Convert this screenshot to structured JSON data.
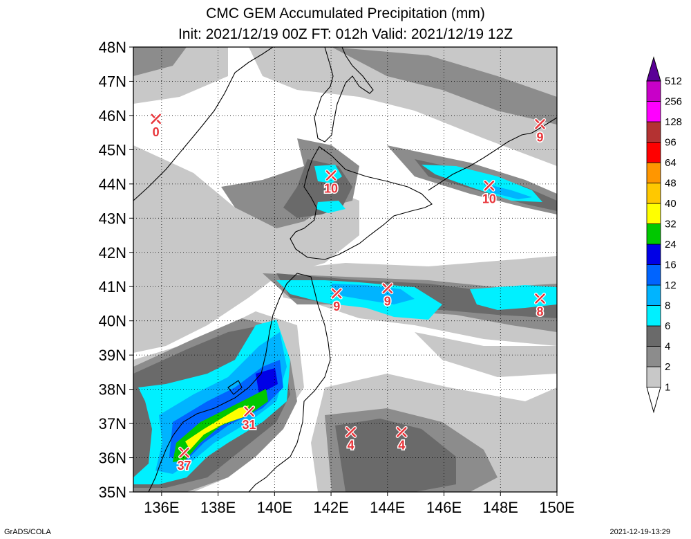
{
  "title": "CMC GEM Accumulated Precipitation (mm)",
  "subtitle": "Init: 2021/12/19 00Z  FT: 012h  Valid: 2021/12/19 12Z",
  "footer_left": "GrADS/COLA",
  "footer_right": "2021-12-19-13:29",
  "chart_data": {
    "type": "heatmap",
    "title": "CMC GEM Accumulated Precipitation (mm)",
    "subtitle": "Init: 2021/12/19 00Z  FT: 012h  Valid: 2021/12/19 12Z",
    "xlim": [
      135,
      150
    ],
    "ylim": [
      35,
      48
    ],
    "x_ticks": [
      136,
      138,
      140,
      142,
      144,
      146,
      148,
      150
    ],
    "x_tick_labels": [
      "136E",
      "138E",
      "140E",
      "142E",
      "144E",
      "146E",
      "148E",
      "150E"
    ],
    "y_ticks": [
      35,
      36,
      37,
      38,
      39,
      40,
      41,
      42,
      43,
      44,
      45,
      46,
      47,
      48
    ],
    "y_tick_labels": [
      "35N",
      "36N",
      "37N",
      "38N",
      "39N",
      "40N",
      "41N",
      "42N",
      "43N",
      "44N",
      "45N",
      "46N",
      "47N",
      "48N"
    ],
    "grid": true,
    "colorbar": {
      "levels": [
        1,
        2,
        4,
        6,
        8,
        12,
        16,
        24,
        32,
        40,
        48,
        64,
        96,
        128,
        256,
        512
      ],
      "level_labels": [
        "1",
        "2",
        "4",
        "6",
        "8",
        "12",
        "16",
        "24",
        "32",
        "40",
        "48",
        "64",
        "96",
        "128",
        "256",
        "512"
      ],
      "colors": [
        "#c8c8c8",
        "#8c8c8c",
        "#6a6a6a",
        "#00f0ff",
        "#00b4ff",
        "#0064ff",
        "#0000e6",
        "#00c800",
        "#ffff00",
        "#ffc800",
        "#ff9600",
        "#ff0000",
        "#b43232",
        "#ff00ff",
        "#c800c8",
        "#8000b4",
        "#5a0096"
      ]
    },
    "points": [
      {
        "lon": 135.8,
        "lat": 45.9,
        "value": 0,
        "label": "0"
      },
      {
        "lon": 142.0,
        "lat": 44.25,
        "value": 10,
        "label": "10"
      },
      {
        "lon": 147.6,
        "lat": 43.95,
        "value": 10,
        "label": "10"
      },
      {
        "lon": 149.4,
        "lat": 45.75,
        "value": 9,
        "label": "9"
      },
      {
        "lon": 142.2,
        "lat": 40.8,
        "value": 9,
        "label": "9"
      },
      {
        "lon": 144.0,
        "lat": 40.95,
        "value": 9,
        "label": "9"
      },
      {
        "lon": 149.4,
        "lat": 40.65,
        "value": 8,
        "label": "8"
      },
      {
        "lon": 139.1,
        "lat": 37.35,
        "value": 31,
        "label": "31"
      },
      {
        "lon": 136.8,
        "lat": 36.15,
        "value": 37,
        "label": "37"
      },
      {
        "lon": 142.7,
        "lat": 36.75,
        "value": 4,
        "label": "4"
      },
      {
        "lon": 144.5,
        "lat": 36.75,
        "value": 4,
        "label": "4"
      }
    ]
  }
}
